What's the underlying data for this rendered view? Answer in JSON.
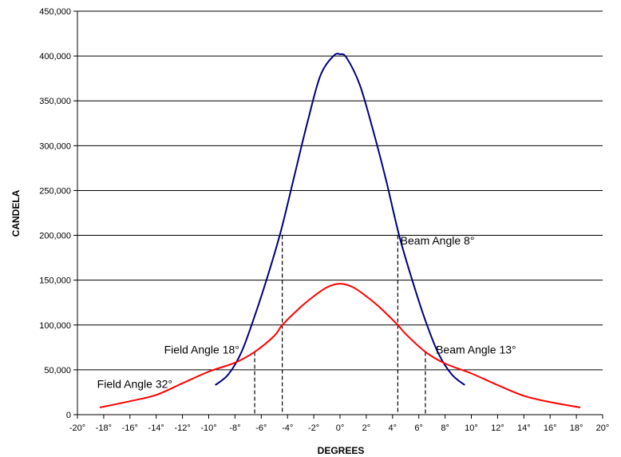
{
  "chart_data": {
    "type": "line",
    "xlabel": "DEGREES",
    "ylabel": "CANDELA",
    "xlim": [
      -20,
      20
    ],
    "ylim": [
      0,
      450000
    ],
    "x_ticks": [
      -20,
      -18,
      -16,
      -14,
      -12,
      -10,
      -8,
      -6,
      -4,
      -2,
      0,
      2,
      4,
      6,
      8,
      10,
      12,
      14,
      16,
      18,
      20
    ],
    "x_tick_labels": [
      "-20°",
      "-18°",
      "-16°",
      "-14°",
      "-12°",
      "-10°",
      "-8°",
      "-6°",
      "-4°",
      "-2°",
      "0°",
      "2°",
      "4°",
      "6°",
      "8°",
      "10°",
      "12°",
      "14°",
      "16°",
      "18°",
      "20°"
    ],
    "y_ticks": [
      0,
      50000,
      100000,
      150000,
      200000,
      250000,
      300000,
      350000,
      400000,
      450000
    ],
    "y_tick_labels": [
      "0",
      "50,000",
      "100,000",
      "150,000",
      "200,000",
      "250,000",
      "300,000",
      "350,000",
      "400,000",
      "450,000"
    ],
    "grid": "horizontal",
    "series": [
      {
        "color": "#000080",
        "x": [
          -9.5,
          -8.5,
          -7.5,
          -6.5,
          -5.5,
          -4.5,
          -3.5,
          -2.5,
          -1.5,
          -0.5,
          0,
          0.5,
          1.5,
          2.5,
          3.5,
          4.5,
          5.5,
          6.5,
          7.5,
          8.5,
          9.5
        ],
        "y": [
          33000,
          45000,
          70000,
          110000,
          155000,
          205000,
          265000,
          325000,
          378000,
          400000,
          402000,
          398000,
          368000,
          318000,
          262000,
          200000,
          150000,
          105000,
          68000,
          45000,
          33000
        ]
      },
      {
        "color": "#ff0000",
        "x": [
          -18.3,
          -16,
          -14,
          -12,
          -10,
          -8,
          -6.5,
          -5,
          -4.4,
          -3,
          -2,
          -1,
          0,
          1,
          2,
          3,
          4.4,
          5,
          6.5,
          8,
          10,
          12,
          14,
          16,
          18.3
        ],
        "y": [
          8000,
          15000,
          22000,
          35000,
          48000,
          58000,
          70000,
          88000,
          100000,
          120000,
          132000,
          142000,
          146000,
          142000,
          132000,
          120000,
          100000,
          90000,
          70000,
          57000,
          46000,
          33000,
          21000,
          14000,
          8000
        ]
      }
    ],
    "reference_lines": [
      {
        "x": -4.4,
        "y": 200000
      },
      {
        "x": 4.4,
        "y": 200000
      },
      {
        "x": -6.5,
        "y": 70000
      },
      {
        "x": 6.5,
        "y": 70000
      }
    ],
    "annotations": [
      {
        "text": "Beam Angle 8°",
        "x": 4.6,
        "y": 190000
      },
      {
        "text": "Beam Angle 13°",
        "x": 7.3,
        "y": 68000
      },
      {
        "text": "Field Angle 18°",
        "x": -13.4,
        "y": 68000
      },
      {
        "text": "Field Angle 32°",
        "x": -18.5,
        "y": 30000
      }
    ]
  }
}
